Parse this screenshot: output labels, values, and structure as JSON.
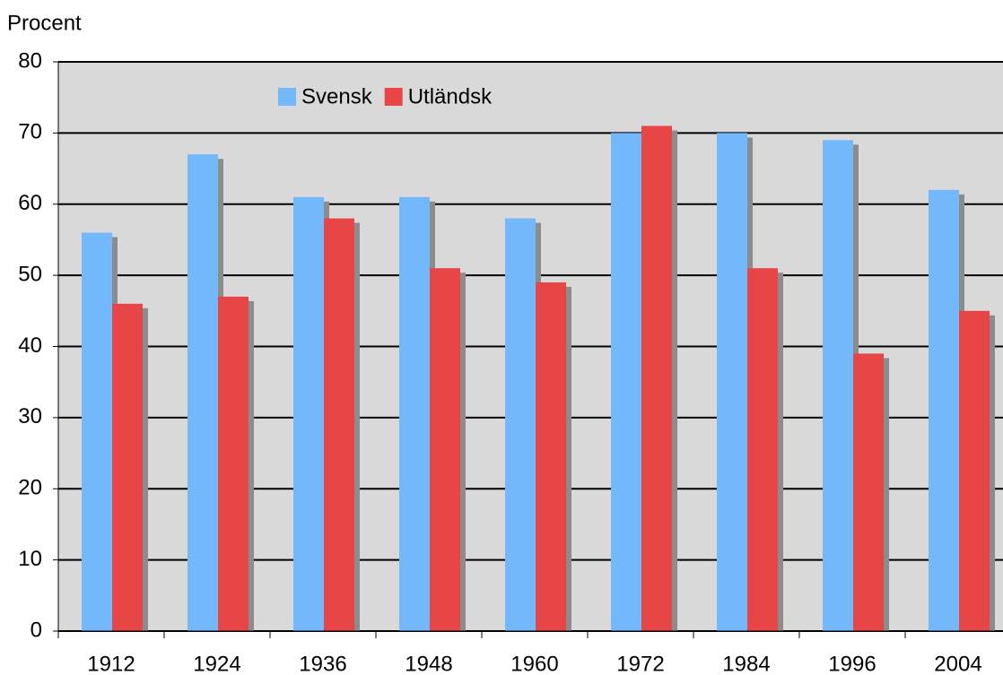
{
  "chart_data": {
    "type": "bar",
    "y_label": "Procent",
    "categories": [
      "1912",
      "1924",
      "1936",
      "1948",
      "1960",
      "1972",
      "1984",
      "1996",
      "2004"
    ],
    "series": [
      {
        "name": "Svensk",
        "color": "#74b8fc",
        "values": [
          56,
          67,
          61,
          61,
          58,
          70,
          70,
          69,
          62
        ]
      },
      {
        "name": "Utländsk",
        "color": "#e84646",
        "values": [
          46,
          47,
          58,
          51,
          49,
          71,
          51,
          39,
          45
        ]
      }
    ],
    "ylim": [
      0,
      80
    ],
    "yticks": [
      0,
      10,
      20,
      30,
      40,
      50,
      60,
      70,
      80
    ],
    "grid": true,
    "legend": "top",
    "plot_background": "#d9d9d9"
  }
}
